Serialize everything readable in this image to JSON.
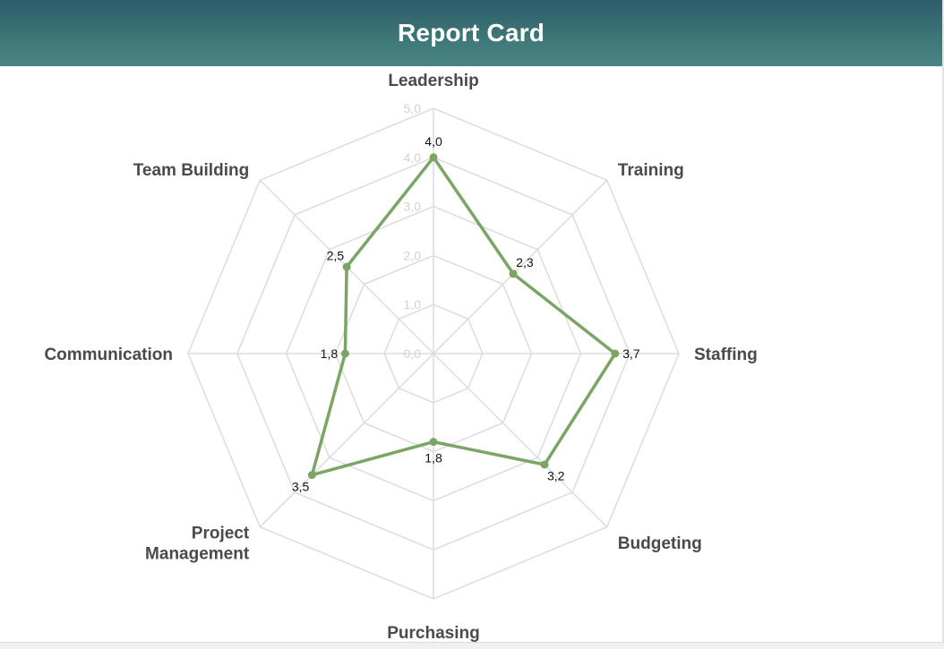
{
  "header": {
    "title": "Report Card"
  },
  "colors": {
    "series": "#7aa564",
    "grid": "#dcdcdc",
    "header_top": "#2d5d6c",
    "header_bottom": "#4a8484"
  },
  "chart_data": {
    "type": "radar",
    "title": "Report Card",
    "categories": [
      "Leadership",
      "Training",
      "Staffing",
      "Budgeting",
      "Purchasing",
      "Project Management",
      "Communication",
      "Team Building"
    ],
    "values": [
      4.0,
      2.3,
      3.7,
      3.2,
      1.8,
      3.5,
      1.8,
      2.5
    ],
    "value_labels": [
      "4,0",
      "2,3",
      "3,7",
      "3,2",
      "1,8",
      "3,5",
      "1,8",
      "2,5"
    ],
    "rlim": [
      0,
      5
    ],
    "ticks": [
      "0,0",
      "1,0",
      "2,0",
      "3,0",
      "4,0",
      "5,0"
    ],
    "grid": true,
    "legend": "none"
  }
}
